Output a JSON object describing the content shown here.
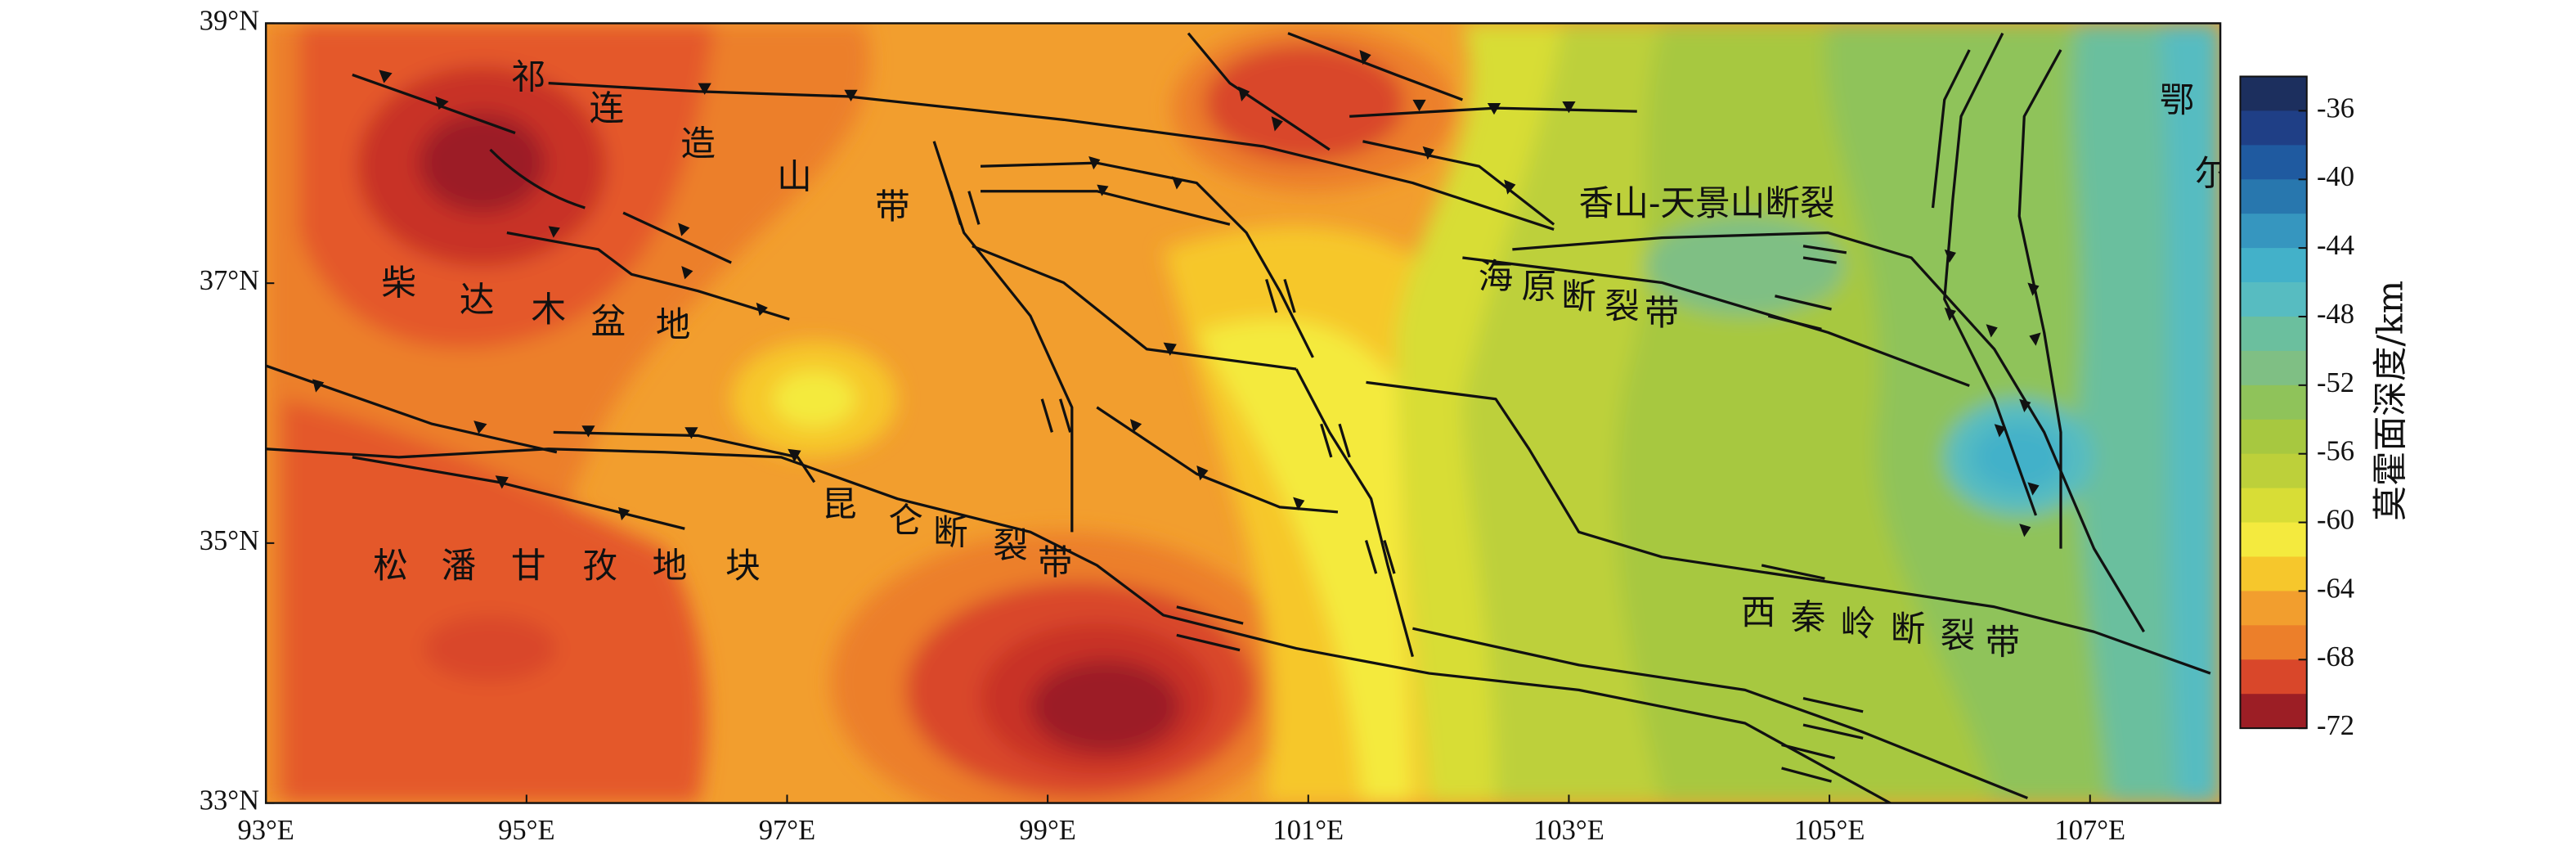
{
  "map": {
    "xlim": [
      93,
      108
    ],
    "ylim": [
      33,
      39
    ],
    "xticks": [
      {
        "value": 93,
        "label": "93°E"
      },
      {
        "value": 95,
        "label": "95°E"
      },
      {
        "value": 97,
        "label": "97°E"
      },
      {
        "value": 99,
        "label": "99°E"
      },
      {
        "value": 101,
        "label": "101°E"
      },
      {
        "value": 103,
        "label": "103°E"
      },
      {
        "value": 105,
        "label": "105°E"
      },
      {
        "value": 107,
        "label": "107°E"
      }
    ],
    "yticks": [
      {
        "value": 33,
        "label": "33°N"
      },
      {
        "value": 35,
        "label": "35°N"
      },
      {
        "value": 37,
        "label": "37°N"
      },
      {
        "value": 39,
        "label": "39°N"
      }
    ],
    "labels": [
      "祁连造山带",
      "柴达木盆地",
      "松潘甘孜地块",
      "昆仑断裂带",
      "海原断裂带",
      "香山-天景山断裂",
      "西秦岭断裂带",
      "鄂尔多斯盆地"
    ]
  },
  "colorbar": {
    "label": "莫霍面深度/km",
    "lim": [
      -72,
      -34
    ],
    "ticks": [
      -36,
      -40,
      -44,
      -48,
      -52,
      -56,
      -60,
      -64,
      -68,
      -72
    ],
    "colors": [
      "#1c2f5e",
      "#1f3f86",
      "#1f5aa0",
      "#2877ae",
      "#3696bf",
      "#43b1c9",
      "#57bcc1",
      "#6bbf9e",
      "#7fbf84",
      "#8fc35a",
      "#a7c840",
      "#bdd03a",
      "#d8dd36",
      "#f4ea3e",
      "#f6c72c",
      "#f29e2e",
      "#ec7f2a",
      "#d9472a",
      "#9c1e25"
    ]
  }
}
